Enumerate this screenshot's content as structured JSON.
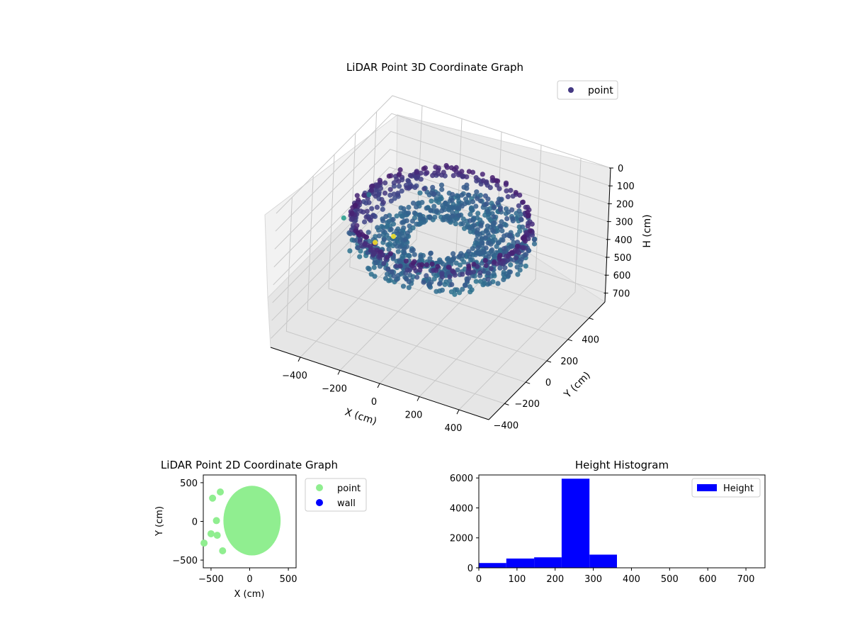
{
  "chart_data": [
    {
      "type": "scatter",
      "title": "LiDAR Point 3D Coordinate Graph",
      "xlabel": "X (cm)",
      "ylabel": "Y (cm)",
      "zlabel": "H (cm)",
      "xlim": [
        -550,
        550
      ],
      "ylim": [
        -550,
        550
      ],
      "zlim": [
        0,
        750
      ],
      "z_axis_inverted": true,
      "x_ticks": [
        "−400",
        "−200",
        "0",
        "200",
        "400"
      ],
      "y_ticks": [
        "−400",
        "−200",
        "0",
        "200",
        "400"
      ],
      "z_ticks": [
        "0",
        "100",
        "200",
        "300",
        "400",
        "500",
        "600",
        "700"
      ],
      "colormap": "viridis",
      "legend": {
        "position": "upper right",
        "entries": [
          {
            "label": "point",
            "color": "#443983"
          }
        ]
      },
      "grid": true,
      "description_shape": "ring of points of radius about 400 cm, heights mostly 220-300 cm, plus a few outliers",
      "outliers": [
        {
          "x": -480,
          "y": 480,
          "h": 720
        },
        {
          "x": -540,
          "y": 420,
          "h": 740
        },
        {
          "x": -520,
          "y": 60,
          "h": 380
        },
        {
          "x": -460,
          "y": 180,
          "h": 300
        }
      ]
    },
    {
      "type": "scatter",
      "title": "LiDAR Point 2D Coordinate Graph",
      "xlabel": "X (cm)",
      "ylabel": "Y (cm)",
      "xlim": [
        -600,
        600
      ],
      "ylim": [
        -600,
        600
      ],
      "x_ticks": [
        "−500",
        "0",
        "500"
      ],
      "y_ticks": [
        "−500",
        "0",
        "500"
      ],
      "series": [
        {
          "name": "point",
          "color": "#90ee90"
        },
        {
          "name": "wall",
          "color": "#0000ff"
        }
      ],
      "legend": {
        "position": "outside right",
        "entries": [
          "point",
          "wall"
        ]
      },
      "grid": false
    },
    {
      "type": "bar",
      "title": "Height Histogram",
      "xlabel": "",
      "ylabel": "",
      "xlim": [
        0,
        750
      ],
      "ylim": [
        0,
        6200
      ],
      "x_ticks": [
        "0",
        "100",
        "200",
        "300",
        "400",
        "500",
        "600",
        "700"
      ],
      "y_ticks": [
        "0",
        "2000",
        "4000",
        "6000"
      ],
      "bins": [
        {
          "from": 0,
          "to": 72,
          "count": 320
        },
        {
          "from": 72,
          "to": 145,
          "count": 620
        },
        {
          "from": 145,
          "to": 217,
          "count": 700
        },
        {
          "from": 217,
          "to": 290,
          "count": 5950
        },
        {
          "from": 290,
          "to": 362,
          "count": 880
        },
        {
          "from": 362,
          "to": 435,
          "count": 4
        },
        {
          "from": 435,
          "to": 507,
          "count": 2
        },
        {
          "from": 507,
          "to": 580,
          "count": 1
        },
        {
          "from": 580,
          "to": 652,
          "count": 1
        },
        {
          "from": 652,
          "to": 725,
          "count": 2
        }
      ],
      "bar_color": "#0000ff",
      "legend": {
        "position": "upper right",
        "entries": [
          {
            "label": "Height",
            "color": "#0000ff"
          }
        ]
      }
    }
  ]
}
